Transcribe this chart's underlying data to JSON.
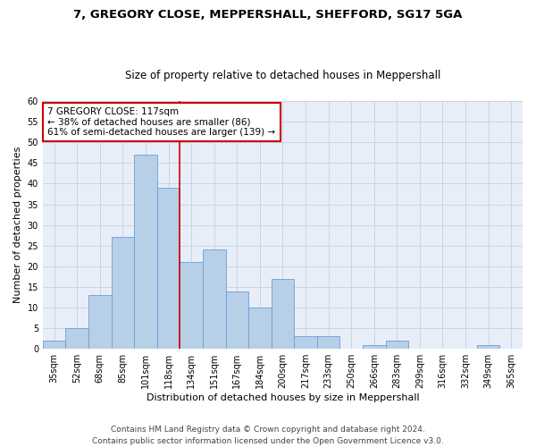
{
  "title_line1": "7, GREGORY CLOSE, MEPPERSHALL, SHEFFORD, SG17 5GA",
  "title_line2": "Size of property relative to detached houses in Meppershall",
  "xlabel": "Distribution of detached houses by size in Meppershall",
  "ylabel": "Number of detached properties",
  "categories": [
    "35sqm",
    "52sqm",
    "68sqm",
    "85sqm",
    "101sqm",
    "118sqm",
    "134sqm",
    "151sqm",
    "167sqm",
    "184sqm",
    "200sqm",
    "217sqm",
    "233sqm",
    "250sqm",
    "266sqm",
    "283sqm",
    "299sqm",
    "316sqm",
    "332sqm",
    "349sqm",
    "365sqm"
  ],
  "values": [
    2,
    5,
    13,
    27,
    47,
    39,
    21,
    24,
    14,
    10,
    17,
    3,
    3,
    0,
    1,
    2,
    0,
    0,
    0,
    1,
    0
  ],
  "bar_color": "#b8cfe8",
  "bar_edge_color": "#6a9fd8",
  "property_line_x": 5.5,
  "annotation_text": "7 GREGORY CLOSE: 117sqm\n← 38% of detached houses are smaller (86)\n61% of semi-detached houses are larger (139) →",
  "annotation_box_color": "white",
  "annotation_box_edge_color": "#cc0000",
  "vline_color": "#cc0000",
  "ylim": [
    0,
    60
  ],
  "yticks": [
    0,
    5,
    10,
    15,
    20,
    25,
    30,
    35,
    40,
    45,
    50,
    55,
    60
  ],
  "grid_color": "#c8d4e8",
  "background_color": "#e8eef8",
  "footer_line1": "Contains HM Land Registry data © Crown copyright and database right 2024.",
  "footer_line2": "Contains public sector information licensed under the Open Government Licence v3.0.",
  "title_fontsize": 9.5,
  "subtitle_fontsize": 8.5,
  "xlabel_fontsize": 8,
  "ylabel_fontsize": 8,
  "tick_fontsize": 7,
  "annotation_fontsize": 7.5,
  "footer_fontsize": 6.5
}
